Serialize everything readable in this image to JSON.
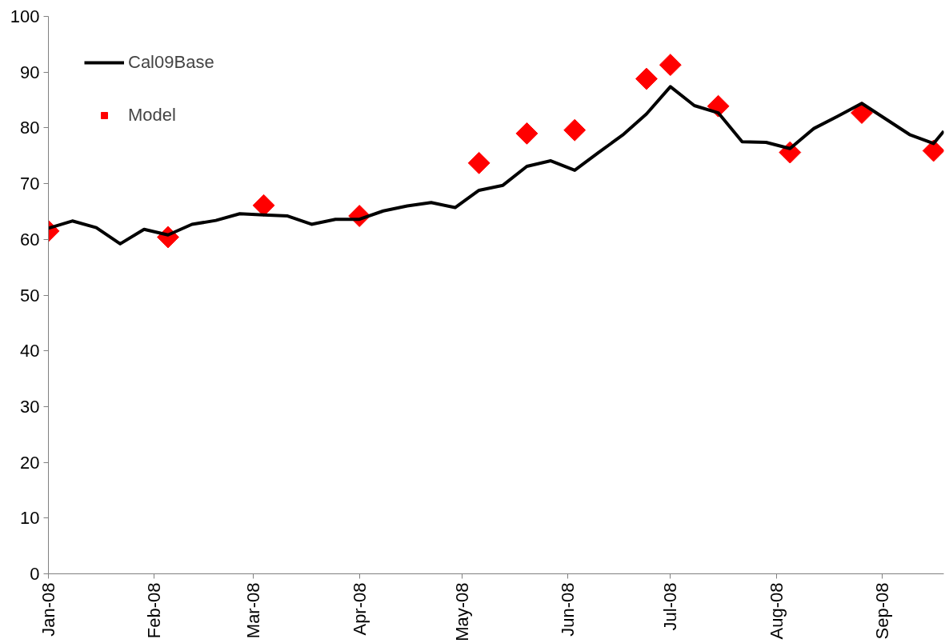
{
  "chart_data": {
    "type": "line",
    "xlim": [
      "2008-01-01",
      "2008-09-19"
    ],
    "ylim": [
      0,
      100
    ],
    "yticks": [
      0,
      10,
      20,
      30,
      40,
      50,
      60,
      70,
      80,
      90,
      100
    ],
    "xticks": [
      {
        "value": "2008-01-01",
        "label": "Jan-08"
      },
      {
        "value": "2008-02-01",
        "label": "Feb-08"
      },
      {
        "value": "2008-03-01",
        "label": "Mar-08"
      },
      {
        "value": "2008-04-01",
        "label": "Apr-08"
      },
      {
        "value": "2008-05-01",
        "label": "May-08"
      },
      {
        "value": "2008-06-01",
        "label": "Jun-08"
      },
      {
        "value": "2008-07-01",
        "label": "Jul-08"
      },
      {
        "value": "2008-08-01",
        "label": "Aug-08"
      },
      {
        "value": "2008-09-01",
        "label": "Sep-08"
      }
    ],
    "grid": false,
    "legend": "top left",
    "series": [
      {
        "name": "Cal09Base",
        "marker": "none",
        "line_style": "solid",
        "color": "#000000",
        "x": [
          "2008-01-01",
          "2008-01-08",
          "2008-01-15",
          "2008-01-22",
          "2008-01-29",
          "2008-02-05",
          "2008-02-12",
          "2008-02-19",
          "2008-02-26",
          "2008-03-04",
          "2008-03-11",
          "2008-03-18",
          "2008-03-25",
          "2008-04-01",
          "2008-04-08",
          "2008-04-15",
          "2008-04-22",
          "2008-04-29",
          "2008-05-06",
          "2008-05-13",
          "2008-05-20",
          "2008-05-27",
          "2008-06-03",
          "2008-06-10",
          "2008-06-17",
          "2008-06-24",
          "2008-07-01",
          "2008-07-08",
          "2008-07-15",
          "2008-07-22",
          "2008-07-29",
          "2008-08-05",
          "2008-08-12",
          "2008-08-19",
          "2008-08-26",
          "2008-09-02",
          "2008-09-09",
          "2008-09-16",
          "2008-09-19"
        ],
        "values": [
          62,
          63.3,
          62.1,
          59.2,
          61.8,
          60.8,
          62.7,
          63.4,
          64.6,
          64.4,
          64.2,
          62.7,
          63.6,
          63.6,
          65.1,
          66,
          66.6,
          65.7,
          68.8,
          69.7,
          73.1,
          74.1,
          72.4,
          75.6,
          78.7,
          82.5,
          87.4,
          84,
          82.7,
          77.5,
          77.4,
          76.3,
          79.9,
          82.1,
          84.4,
          81.6,
          78.8,
          77.2,
          79.4
        ]
      },
      {
        "name": "Model",
        "type": "scatter",
        "marker": "diamond",
        "color": "#ff0000",
        "x": [
          "2008-01-01",
          "2008-02-05",
          "2008-03-04",
          "2008-04-01",
          "2008-05-06",
          "2008-05-20",
          "2008-06-03",
          "2008-06-24",
          "2008-07-01",
          "2008-07-15",
          "2008-08-05",
          "2008-08-26",
          "2008-09-16"
        ],
        "values": [
          61.5,
          60.4,
          66.1,
          64.2,
          73.7,
          79,
          79.6,
          88.8,
          91.3,
          83.9,
          75.6,
          82.7,
          75.9
        ]
      }
    ]
  }
}
